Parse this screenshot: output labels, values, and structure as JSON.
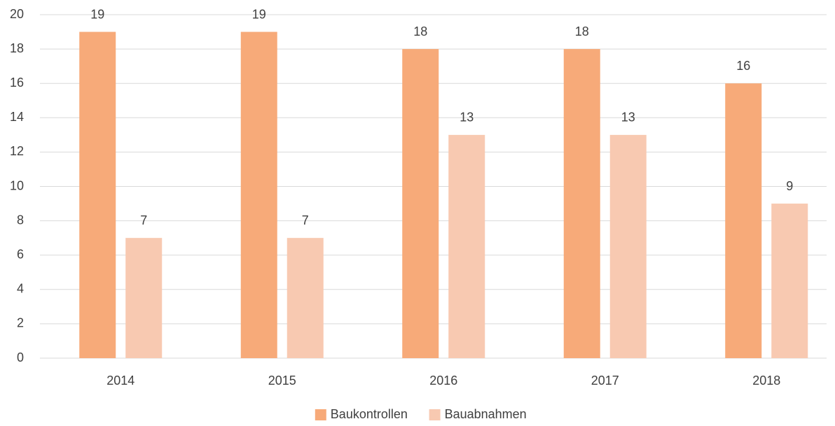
{
  "chart_data": {
    "type": "bar",
    "categories": [
      "2014",
      "2015",
      "2016",
      "2017",
      "2018"
    ],
    "series": [
      {
        "name": "Baukontrollen",
        "color": "#f7aa79",
        "values": [
          19,
          19,
          18,
          18,
          16
        ]
      },
      {
        "name": "Bauabnahmen",
        "color": "#f8c9b1",
        "values": [
          7,
          7,
          13,
          13,
          9
        ]
      }
    ],
    "ylim": [
      0,
      20
    ],
    "yticks": [
      0,
      2,
      4,
      6,
      8,
      10,
      12,
      14,
      16,
      18,
      20
    ],
    "grid": true,
    "legend": "bottom"
  }
}
